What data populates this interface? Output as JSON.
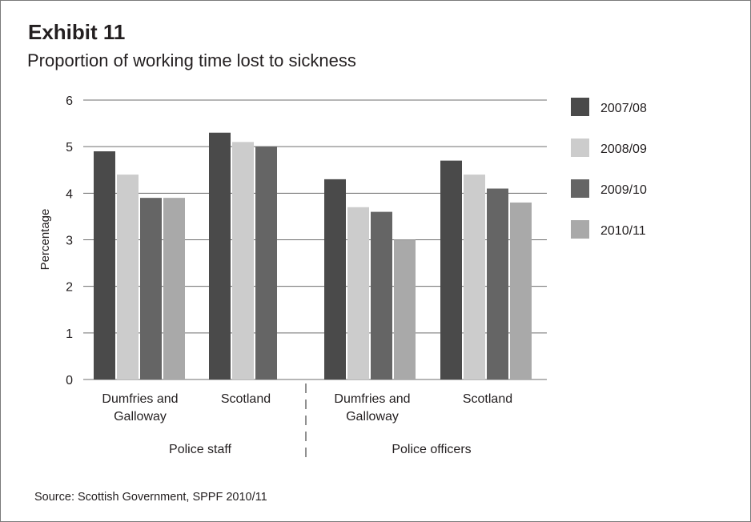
{
  "exhibit": {
    "title": "Exhibit 11",
    "subtitle": "Proportion of working time lost to sickness",
    "source": "Source: Scottish Government, SPPF 2010/11"
  },
  "chart_data": {
    "type": "bar",
    "ylabel": "Percentage",
    "ylim": [
      0,
      6
    ],
    "yticks": [
      0,
      1,
      2,
      3,
      4,
      5,
      6
    ],
    "grid": true,
    "legend_position": "right",
    "groups": [
      {
        "label": "Police staff",
        "categories": [
          [
            "Dumfries and",
            "Galloway"
          ],
          [
            "Scotland"
          ]
        ]
      },
      {
        "label": "Police officers",
        "categories": [
          [
            "Dumfries and",
            "Galloway"
          ],
          [
            "Scotland"
          ]
        ]
      }
    ],
    "series": [
      {
        "name": "2007/08",
        "color": "#4a4a4a",
        "values": [
          4.9,
          5.3,
          4.3,
          4.7
        ]
      },
      {
        "name": "2008/09",
        "color": "#cccccc",
        "values": [
          4.4,
          5.1,
          3.7,
          4.4
        ]
      },
      {
        "name": "2009/10",
        "color": "#656565",
        "values": [
          3.9,
          5.0,
          3.6,
          4.1
        ]
      },
      {
        "name": "2010/11",
        "color": "#a9a9a9",
        "values": [
          3.9,
          null,
          3.0,
          3.8
        ]
      }
    ]
  }
}
